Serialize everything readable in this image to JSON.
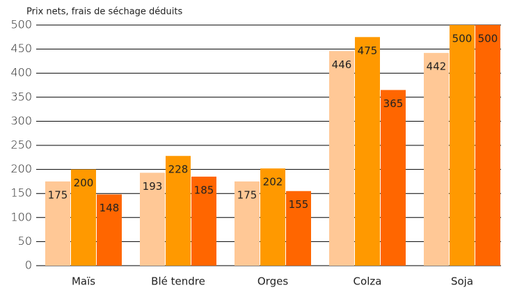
{
  "chart_data": {
    "type": "bar",
    "title": "Prix nets, frais de séchage déduits",
    "categories": [
      "Maïs",
      "Blé tendre",
      "Orges",
      "Colza",
      "Soja"
    ],
    "series": [
      {
        "color": "#ffc896",
        "values": [
          175,
          193,
          175,
          446,
          442
        ]
      },
      {
        "color": "#ff9900",
        "values": [
          200,
          228,
          202,
          475,
          500
        ]
      },
      {
        "color": "#ff6600",
        "values": [
          148,
          185,
          155,
          365,
          500
        ]
      }
    ],
    "ylim": [
      0,
      500
    ],
    "yticks": [
      0,
      50,
      100,
      150,
      200,
      250,
      300,
      350,
      400,
      450,
      500
    ],
    "grid": true
  }
}
